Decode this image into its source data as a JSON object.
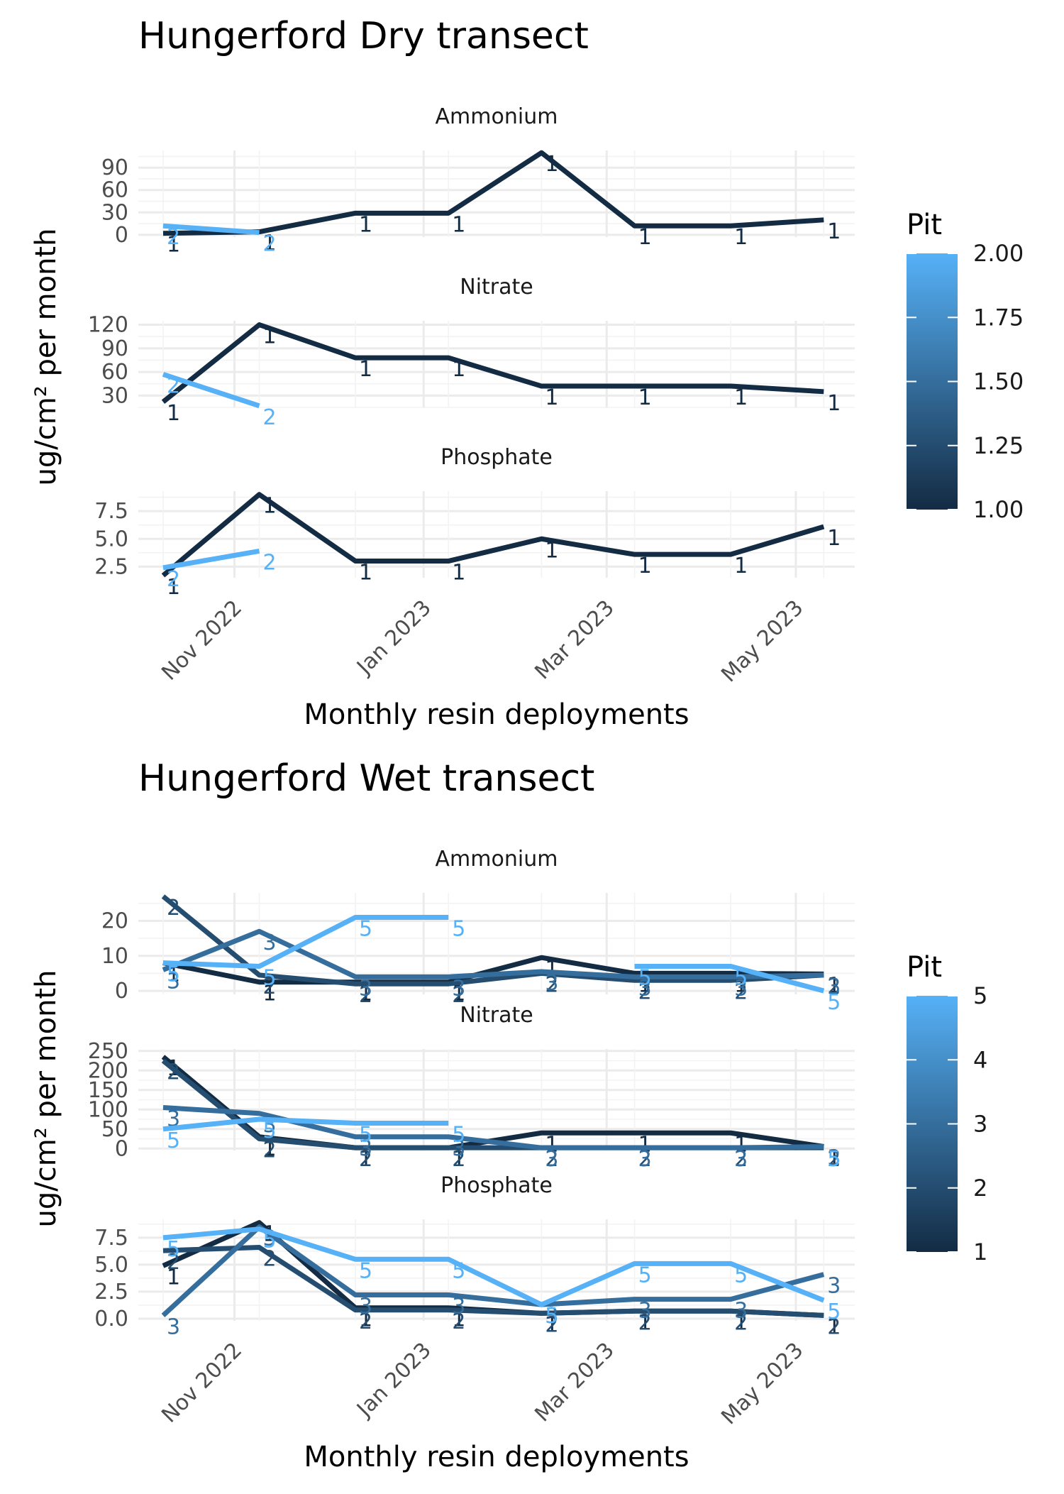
{
  "chart_data": [
    {
      "type": "line",
      "title": "Hungerford Dry transect",
      "xlabel": "Monthly resin deployments",
      "ylabel": "ug/cm² per month",
      "x_dates": [
        "2022-10-09",
        "2022-11-09",
        "2022-12-10",
        "2023-01-09",
        "2023-02-08",
        "2023-03-10",
        "2023-04-10",
        "2023-05-10"
      ],
      "x_ticks": [
        {
          "date": "2022-11-01",
          "label": "Nov 2022"
        },
        {
          "date": "2023-01-01",
          "label": "Jan 2023"
        },
        {
          "date": "2023-03-01",
          "label": "Mar 2023"
        },
        {
          "date": "2023-05-01",
          "label": "May 2023"
        }
      ],
      "legend": {
        "title": "Pit",
        "min": 1,
        "max": 2,
        "ticks": [
          "1.00",
          "1.25",
          "1.50",
          "1.75",
          "2.00"
        ],
        "tick_values": [
          1,
          1.25,
          1.5,
          1.75,
          2
        ],
        "position": "right"
      },
      "colors": {
        "low": "#132B43",
        "high": "#56B1F7"
      },
      "grid": true,
      "panels": [
        {
          "strip": "Ammonium",
          "ylim": [
            -3,
            113
          ],
          "yticks": [
            0,
            30,
            60,
            90
          ],
          "ytick_labels": [
            "0",
            "30",
            "60",
            "90"
          ],
          "series": [
            {
              "pit": 1,
              "values": [
                2,
                4,
                29,
                29,
                110,
                12,
                12,
                20
              ]
            },
            {
              "pit": 2,
              "values": [
                12,
                3,
                null,
                null,
                null,
                null,
                null,
                null
              ]
            }
          ]
        },
        {
          "strip": "Nitrate",
          "ylim": [
            15,
            125
          ],
          "yticks": [
            30,
            60,
            90,
            120
          ],
          "ytick_labels": [
            "30",
            "60",
            "90",
            "120"
          ],
          "series": [
            {
              "pit": 1,
              "values": [
                22,
                120,
                78,
                78,
                42,
                42,
                42,
                35
              ]
            },
            {
              "pit": 2,
              "values": [
                57,
                17,
                null,
                null,
                null,
                null,
                null,
                null
              ]
            }
          ]
        },
        {
          "strip": "Phosphate",
          "ylim": [
            1.5,
            9.3
          ],
          "yticks": [
            2.5,
            5,
            7.5
          ],
          "ytick_labels": [
            "2.5",
            "5.0",
            "7.5"
          ],
          "series": [
            {
              "pit": 1,
              "values": [
                1.7,
                9.0,
                3.0,
                3.0,
                5.0,
                3.6,
                3.6,
                6.1
              ]
            },
            {
              "pit": 2,
              "values": [
                2.4,
                3.9,
                null,
                null,
                null,
                null,
                null,
                null
              ]
            }
          ]
        }
      ]
    },
    {
      "type": "line",
      "title": "Hungerford Wet transect",
      "xlabel": "Monthly resin deployments",
      "ylabel": "ug/cm² per month",
      "x_dates": [
        "2022-10-09",
        "2022-11-09",
        "2022-12-10",
        "2023-01-09",
        "2023-02-08",
        "2023-03-10",
        "2023-04-10",
        "2023-05-10"
      ],
      "x_ticks": [
        {
          "date": "2022-11-01",
          "label": "Nov 2022"
        },
        {
          "date": "2023-01-01",
          "label": "Jan 2023"
        },
        {
          "date": "2023-03-01",
          "label": "Mar 2023"
        },
        {
          "date": "2023-05-01",
          "label": "May 2023"
        }
      ],
      "legend": {
        "title": "Pit",
        "min": 1,
        "max": 5,
        "ticks": [
          "1",
          "2",
          "3",
          "4",
          "5"
        ],
        "tick_values": [
          1,
          2,
          3,
          4,
          5
        ],
        "position": "right"
      },
      "colors": {
        "low": "#132B43",
        "high": "#56B1F7"
      },
      "grid": true,
      "panels": [
        {
          "strip": "Ammonium",
          "ylim": [
            -1,
            28
          ],
          "yticks": [
            0,
            10,
            20
          ],
          "ytick_labels": [
            "0",
            "10",
            "20"
          ],
          "series": [
            {
              "pit": 1,
              "values": [
                8,
                2.5,
                2.5,
                2.5,
                9.5,
                5,
                5,
                4.8
              ]
            },
            {
              "pit": 2,
              "values": [
                27,
                4.5,
                2,
                2,
                5,
                3,
                3,
                4.5
              ]
            },
            {
              "pit": 3,
              "values": [
                6,
                17,
                4,
                4,
                5.5,
                4,
                4,
                4.5
              ]
            },
            {
              "pit": 5,
              "values": [
                8,
                7,
                21,
                21,
                null,
                7,
                7,
                0
              ]
            }
          ]
        },
        {
          "strip": "Nitrate",
          "ylim": [
            -5,
            255
          ],
          "yticks": [
            0,
            50,
            100,
            150,
            200,
            250
          ],
          "ytick_labels": [
            "0",
            "50",
            "100",
            "150",
            "200",
            "250"
          ],
          "series": [
            {
              "pit": 1,
              "values": [
                235,
                30,
                2,
                2,
                40,
                40,
                40,
                5
              ]
            },
            {
              "pit": 2,
              "values": [
                225,
                25,
                2,
                2,
                2,
                2,
                2,
                2
              ]
            },
            {
              "pit": 3,
              "values": [
                105,
                90,
                30,
                30,
                2,
                2,
                2,
                5
              ]
            },
            {
              "pit": 5,
              "values": [
                50,
                75,
                65,
                65,
                null,
                null,
                null,
                2
              ]
            }
          ]
        },
        {
          "strip": "Phosphate",
          "ylim": [
            -0.2,
            9.2
          ],
          "yticks": [
            0,
            2.5,
            5,
            7.5
          ],
          "ytick_labels": [
            "0.0",
            "2.5",
            "5.0",
            "7.5"
          ],
          "series": [
            {
              "pit": 1,
              "values": [
                4.9,
                8.9,
                1.0,
                1.0,
                0.5,
                0.7,
                0.7,
                0.3
              ]
            },
            {
              "pit": 2,
              "values": [
                6.3,
                6.6,
                0.8,
                0.8,
                0.5,
                0.7,
                0.7,
                0.3
              ]
            },
            {
              "pit": 3,
              "values": [
                0.3,
                8.5,
                2.2,
                2.2,
                1.3,
                1.8,
                1.8,
                4.1
              ]
            },
            {
              "pit": 5,
              "values": [
                7.5,
                8.3,
                5.5,
                5.5,
                1.3,
                5.1,
                5.1,
                1.7
              ]
            }
          ]
        }
      ]
    }
  ]
}
